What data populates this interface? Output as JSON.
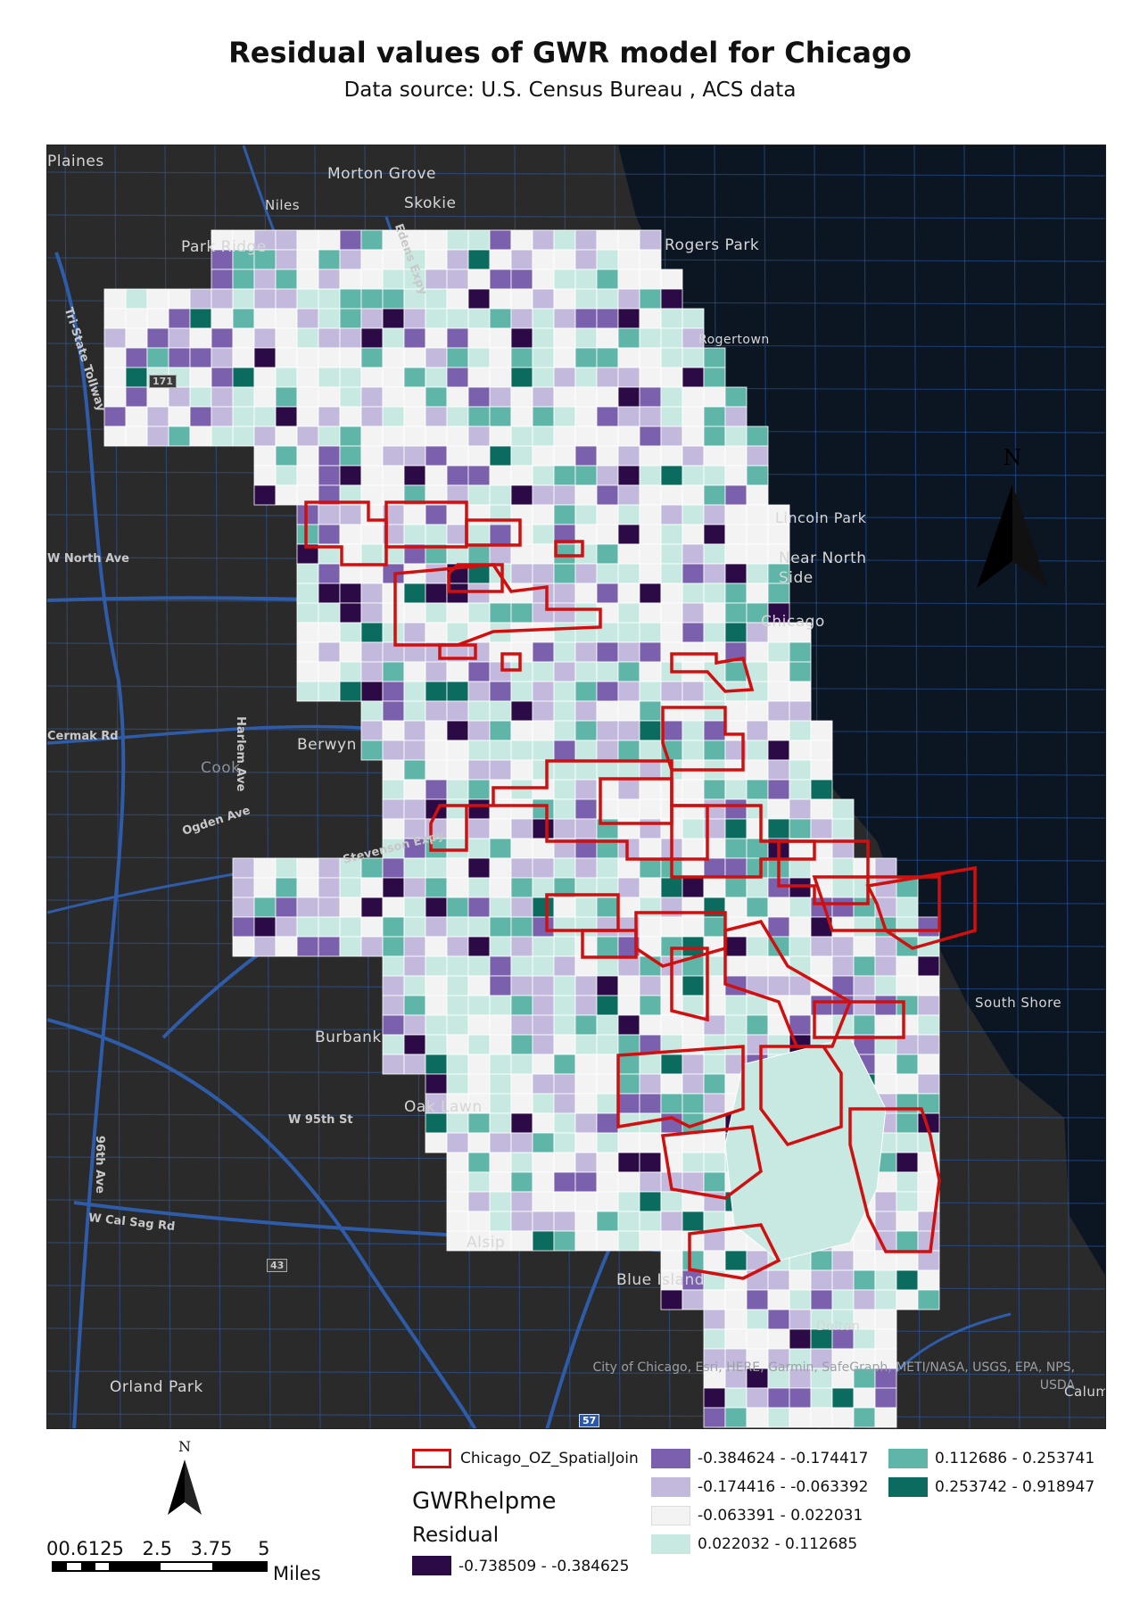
{
  "title": "Residual values of GWR model for Chicago",
  "subtitle": "Data source: U.S. Census Bureau , ACS data",
  "map": {
    "basemap_places": [
      "Plaines",
      "Morton Grove",
      "Niles",
      "Skokie",
      "Park Ridge",
      "Rogers Park",
      "Rogertown",
      "Lincoln Park",
      "Near North Side",
      "Chicago",
      "W North Ave",
      "Cermak Rd",
      "Berwyn",
      "Cook",
      "Harlem Ave",
      "Ogden Ave",
      "Stevenson Expy",
      "Burbank",
      "W 95th St",
      "Oak Lawn",
      "96th Ave",
      "W Cal Sag Rd",
      "Alsip",
      "Blue Island",
      "Dolton",
      "Orland Park",
      "South Shore",
      "Calumet City",
      "Tri-State Tollway",
      "Edens Expy"
    ],
    "highway_shields": [
      "171",
      "43",
      "57"
    ],
    "credits": "City of Chicago, Esri, HERE, Garmin, SafeGraph, METI/NASA, USGS, EPA, NPS, USDA",
    "north_arrow": "N"
  },
  "legend": {
    "outline_layer": "Chicago_OZ_SpatialJoin",
    "layer_name": "GWRhelpme",
    "field_name": "Residual",
    "classes": [
      {
        "label": "-0.738509 - -0.384625",
        "color": "#2b0a45"
      },
      {
        "label": "-0.384624 - -0.174417",
        "color": "#7b61ad"
      },
      {
        "label": "-0.174416 - -0.063392",
        "color": "#c3b9dc"
      },
      {
        "label": "-0.063391 - 0.022031",
        "color": "#f3f3f3"
      },
      {
        "label": "0.022032 - 0.112685",
        "color": "#c8e8e2"
      },
      {
        "label": "0.112686 - 0.253741",
        "color": "#5fb6a8"
      },
      {
        "label": "0.253742 - 0.918947",
        "color": "#0b6b5e"
      }
    ],
    "outline_color": "#d10f0f"
  },
  "scale": {
    "tick_labels": [
      "00.6125",
      "2.5",
      "3.75",
      "5"
    ],
    "unit": "Miles"
  },
  "north_arrow_bottom": "N"
}
